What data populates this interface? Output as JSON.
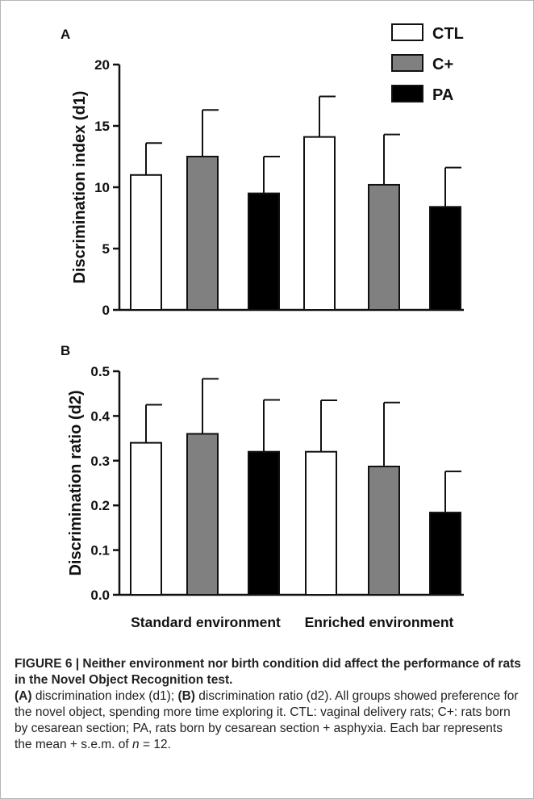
{
  "chart_data": [
    {
      "panel": "A",
      "type": "bar",
      "ylabel": "Discrimination index (d1)",
      "ylim": [
        0,
        20
      ],
      "yticks": [
        0,
        5,
        10,
        15,
        20
      ],
      "legend_placement": "top-right",
      "groups": [
        "Standard environment",
        "Enriched environment"
      ],
      "series": [
        {
          "name": "CTL",
          "color": "#ffffff",
          "values": [
            11.0,
            14.1
          ],
          "sem": [
            2.6,
            3.3
          ]
        },
        {
          "name": "C+",
          "color": "#808080",
          "values": [
            12.5,
            10.2
          ],
          "sem": [
            3.8,
            4.1
          ]
        },
        {
          "name": "PA",
          "color": "#000000",
          "values": [
            9.5,
            8.4
          ],
          "sem": [
            3.0,
            3.2
          ]
        }
      ]
    },
    {
      "panel": "B",
      "type": "bar",
      "ylabel": "Discrimination ratio (d2)",
      "ylim": [
        0,
        0.5
      ],
      "yticks": [
        "0.0",
        "0.1",
        "0.2",
        "0.3",
        "0.4",
        "0.5"
      ],
      "groups": [
        "Standard environment",
        "Enriched environment"
      ],
      "series": [
        {
          "name": "CTL",
          "color": "#ffffff",
          "values": [
            0.34,
            0.32
          ],
          "sem": [
            0.085,
            0.115
          ]
        },
        {
          "name": "C+",
          "color": "#808080",
          "values": [
            0.36,
            0.287
          ],
          "sem": [
            0.123,
            0.143
          ]
        },
        {
          "name": "PA",
          "color": "#000000",
          "values": [
            0.32,
            0.184
          ],
          "sem": [
            0.116,
            0.092
          ]
        }
      ]
    }
  ],
  "caption": {
    "title": "FIGURE 6 | Neither environment nor birth condition did affect the performance of rats in the Novel Object Recognition test.",
    "parts": {
      "a_label": "(A)",
      "a_text": " discrimination index (d1); ",
      "b_label": "(B)",
      "b_text": " discrimination ratio (d2). All groups showed preference for the novel object, spending more time exploring it. CTL: vaginal delivery rats; C+: rats born by cesarean section; PA, rats born by cesarean section + asphyxia. Each bar represents the mean + s.e.m. of ",
      "n_var": "n",
      "n_text": " = 12."
    }
  }
}
